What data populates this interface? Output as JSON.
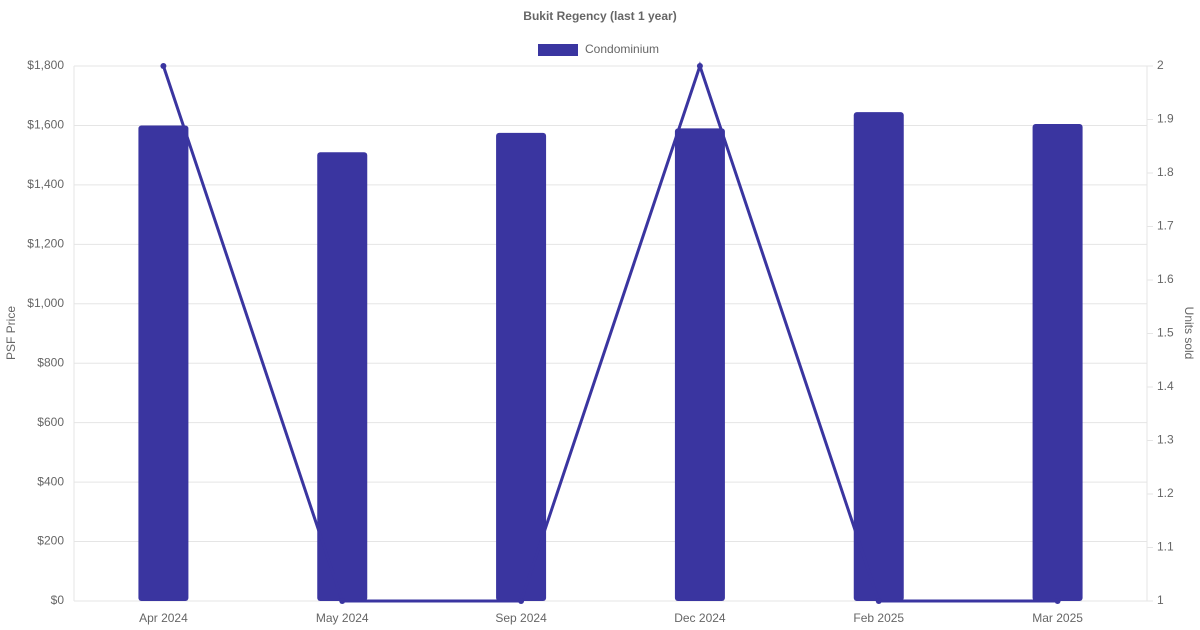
{
  "chart_data": {
    "type": "bar",
    "title": "Bukit Regency (last 1 year)",
    "y_label": "PSF Price",
    "y2_label": "Units sold",
    "categories": [
      "Apr 2024",
      "May 2024",
      "Sep 2024",
      "Dec 2024",
      "Feb 2025",
      "Mar 2025"
    ],
    "series": [
      {
        "name": "Condominium",
        "color": "#3a35a0",
        "values": [
          1600,
          1510,
          1575,
          1590,
          1645,
          1605
        ]
      },
      {
        "type": "line",
        "axis": "y2",
        "color": "#3a35a0",
        "values": [
          2,
          1,
          1,
          2,
          1,
          1
        ]
      }
    ],
    "ylim": [
      0,
      1800
    ],
    "yticks": [
      {
        "value": 0,
        "label": "$0"
      },
      {
        "value": 200,
        "label": "$200"
      },
      {
        "value": 400,
        "label": "$400"
      },
      {
        "value": 600,
        "label": "$600"
      },
      {
        "value": 800,
        "label": "$800"
      },
      {
        "value": 1000,
        "label": "$1,000"
      },
      {
        "value": 1200,
        "label": "$1,200"
      },
      {
        "value": 1400,
        "label": "$1,400"
      },
      {
        "value": 1600,
        "label": "$1,600"
      },
      {
        "value": 1800,
        "label": "$1,800"
      }
    ],
    "y2lim": [
      1,
      2
    ],
    "y2ticks": [
      1,
      1.1,
      1.2,
      1.3,
      1.4,
      1.5,
      1.6,
      1.7,
      1.8,
      1.9,
      2
    ],
    "grid": true,
    "legend": "top"
  }
}
